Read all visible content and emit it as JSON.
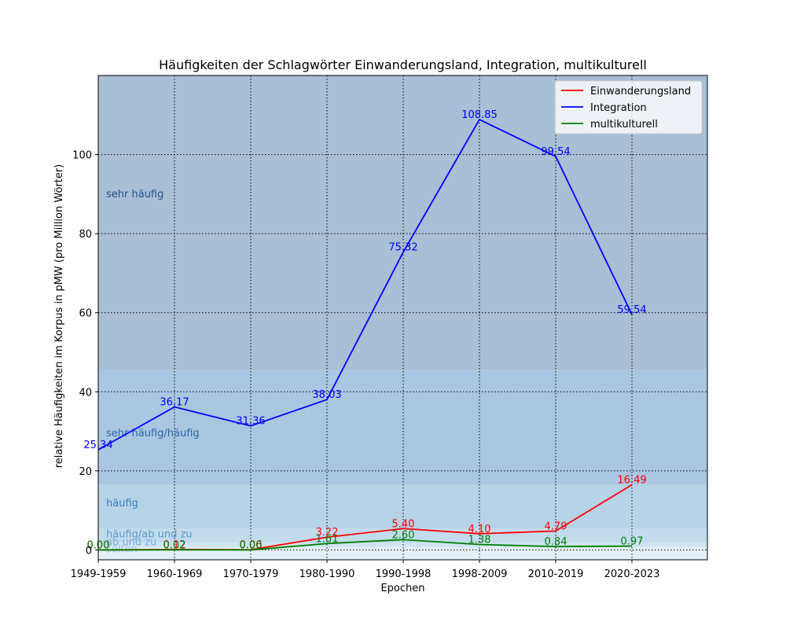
{
  "chart_data": {
    "type": "line",
    "title": "Häufigkeiten der Schlagwörter Einwanderungsland, Integration, multikulturell",
    "xlabel": "Epochen",
    "ylabel": "relative Häufigkeiten im Korpus in pMW (pro Million Wörter)",
    "categories": [
      "1949-1959",
      "1960-1969",
      "1970-1979",
      "1980-1990",
      "1990-1998",
      "1998-2009",
      "2010-2019",
      "2020-2023"
    ],
    "ylim": [
      -2.5,
      120
    ],
    "yticks": [
      0,
      20,
      40,
      60,
      80,
      100
    ],
    "grid": true,
    "legend": "top-right",
    "series": [
      {
        "name": "Einwanderungsland",
        "color": "#ff0000",
        "values": [
          0.0,
          0.12,
          0.06,
          3.22,
          5.4,
          4.1,
          4.79,
          16.49
        ],
        "labels": [
          "0.00",
          "0.12",
          "0.06",
          "3.22",
          "5.40",
          "4.10",
          "4.79",
          "16.49"
        ]
      },
      {
        "name": "Integration",
        "color": "#0000ff",
        "values": [
          25.34,
          36.17,
          31.36,
          38.03,
          75.32,
          108.85,
          99.54,
          59.54
        ],
        "labels": [
          "25.34",
          "36.17",
          "31.36",
          "38.03",
          "75.32",
          "108.85",
          "99.54",
          "59.54"
        ]
      },
      {
        "name": "multikulturell",
        "color": "#008000",
        "values": [
          0.0,
          0.02,
          0.0,
          1.61,
          2.6,
          1.38,
          0.84,
          0.97
        ],
        "labels": [
          "0.00",
          "0.02",
          "0.00",
          "1.61",
          "2.60",
          "1.38",
          "0.84",
          "0.97"
        ]
      }
    ],
    "bands": [
      {
        "label": "sehr häufig",
        "from": 45.5,
        "to": 120,
        "color": "#a8bfd6",
        "text_color": "#1f4f8a",
        "label_y": 90
      },
      {
        "label": "sehr häufig/häufig",
        "from": 16.5,
        "to": 45.5,
        "color": "#aac7e2",
        "text_color": "#2a66a8",
        "label_y": 29.5
      },
      {
        "label": "häufig",
        "from": 5.3,
        "to": 16.5,
        "color": "#b6d3e8",
        "text_color": "#3a7fc0",
        "label_y": 11.8
      },
      {
        "label": "häufig/ab und zu",
        "from": 1.8,
        "to": 5.3,
        "color": "#c2dcee",
        "text_color": "#5b98cc",
        "label_y": 4.0
      },
      {
        "label": "ab und zu",
        "from": 0.7,
        "to": 1.8,
        "color": "#cfe4f3",
        "text_color": "#7aafd8",
        "label_y": 2.0
      },
      {
        "label": "selten",
        "from": -2.5,
        "to": 0.7,
        "color": "#e4f0f9",
        "text_color": "#9fc6e6",
        "label_y": 0.2
      }
    ]
  }
}
